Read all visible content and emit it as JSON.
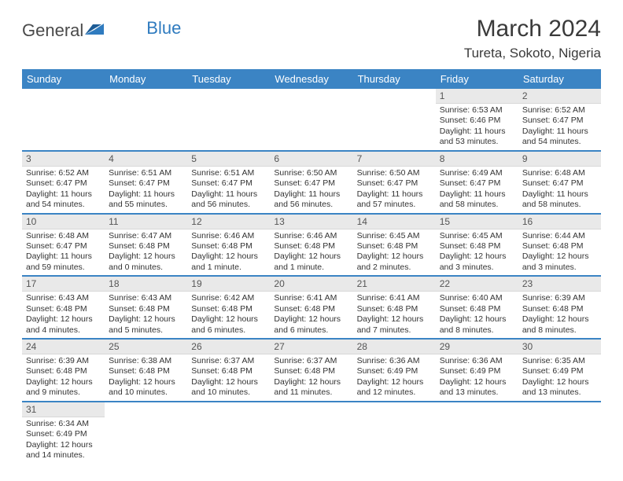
{
  "logo": {
    "general": "General",
    "blue": "Blue"
  },
  "header": {
    "title": "March 2024",
    "location": "Tureta, Sokoto, Nigeria",
    "title_fontsize": 30,
    "title_color": "#3a3a3a",
    "location_fontsize": 17
  },
  "colors": {
    "header_bg": "#3b84c4",
    "header_text": "#ffffff",
    "daynum_bg": "#e9e9e9",
    "daynum_color": "#555555",
    "row_border": "#3b84c4",
    "body_text": "#333333",
    "logo_blue": "#2f7bbf",
    "logo_gray": "#4a4a4a",
    "background": "#ffffff"
  },
  "weekdays": [
    "Sunday",
    "Monday",
    "Tuesday",
    "Wednesday",
    "Thursday",
    "Friday",
    "Saturday"
  ],
  "weeks": [
    [
      null,
      null,
      null,
      null,
      null,
      {
        "day": "1",
        "sunrise": "Sunrise: 6:53 AM",
        "sunset": "Sunset: 6:46 PM",
        "daylight": "Daylight: 11 hours and 53 minutes."
      },
      {
        "day": "2",
        "sunrise": "Sunrise: 6:52 AM",
        "sunset": "Sunset: 6:47 PM",
        "daylight": "Daylight: 11 hours and 54 minutes."
      }
    ],
    [
      {
        "day": "3",
        "sunrise": "Sunrise: 6:52 AM",
        "sunset": "Sunset: 6:47 PM",
        "daylight": "Daylight: 11 hours and 54 minutes."
      },
      {
        "day": "4",
        "sunrise": "Sunrise: 6:51 AM",
        "sunset": "Sunset: 6:47 PM",
        "daylight": "Daylight: 11 hours and 55 minutes."
      },
      {
        "day": "5",
        "sunrise": "Sunrise: 6:51 AM",
        "sunset": "Sunset: 6:47 PM",
        "daylight": "Daylight: 11 hours and 56 minutes."
      },
      {
        "day": "6",
        "sunrise": "Sunrise: 6:50 AM",
        "sunset": "Sunset: 6:47 PM",
        "daylight": "Daylight: 11 hours and 56 minutes."
      },
      {
        "day": "7",
        "sunrise": "Sunrise: 6:50 AM",
        "sunset": "Sunset: 6:47 PM",
        "daylight": "Daylight: 11 hours and 57 minutes."
      },
      {
        "day": "8",
        "sunrise": "Sunrise: 6:49 AM",
        "sunset": "Sunset: 6:47 PM",
        "daylight": "Daylight: 11 hours and 58 minutes."
      },
      {
        "day": "9",
        "sunrise": "Sunrise: 6:48 AM",
        "sunset": "Sunset: 6:47 PM",
        "daylight": "Daylight: 11 hours and 58 minutes."
      }
    ],
    [
      {
        "day": "10",
        "sunrise": "Sunrise: 6:48 AM",
        "sunset": "Sunset: 6:47 PM",
        "daylight": "Daylight: 11 hours and 59 minutes."
      },
      {
        "day": "11",
        "sunrise": "Sunrise: 6:47 AM",
        "sunset": "Sunset: 6:48 PM",
        "daylight": "Daylight: 12 hours and 0 minutes."
      },
      {
        "day": "12",
        "sunrise": "Sunrise: 6:46 AM",
        "sunset": "Sunset: 6:48 PM",
        "daylight": "Daylight: 12 hours and 1 minute."
      },
      {
        "day": "13",
        "sunrise": "Sunrise: 6:46 AM",
        "sunset": "Sunset: 6:48 PM",
        "daylight": "Daylight: 12 hours and 1 minute."
      },
      {
        "day": "14",
        "sunrise": "Sunrise: 6:45 AM",
        "sunset": "Sunset: 6:48 PM",
        "daylight": "Daylight: 12 hours and 2 minutes."
      },
      {
        "day": "15",
        "sunrise": "Sunrise: 6:45 AM",
        "sunset": "Sunset: 6:48 PM",
        "daylight": "Daylight: 12 hours and 3 minutes."
      },
      {
        "day": "16",
        "sunrise": "Sunrise: 6:44 AM",
        "sunset": "Sunset: 6:48 PM",
        "daylight": "Daylight: 12 hours and 3 minutes."
      }
    ],
    [
      {
        "day": "17",
        "sunrise": "Sunrise: 6:43 AM",
        "sunset": "Sunset: 6:48 PM",
        "daylight": "Daylight: 12 hours and 4 minutes."
      },
      {
        "day": "18",
        "sunrise": "Sunrise: 6:43 AM",
        "sunset": "Sunset: 6:48 PM",
        "daylight": "Daylight: 12 hours and 5 minutes."
      },
      {
        "day": "19",
        "sunrise": "Sunrise: 6:42 AM",
        "sunset": "Sunset: 6:48 PM",
        "daylight": "Daylight: 12 hours and 6 minutes."
      },
      {
        "day": "20",
        "sunrise": "Sunrise: 6:41 AM",
        "sunset": "Sunset: 6:48 PM",
        "daylight": "Daylight: 12 hours and 6 minutes."
      },
      {
        "day": "21",
        "sunrise": "Sunrise: 6:41 AM",
        "sunset": "Sunset: 6:48 PM",
        "daylight": "Daylight: 12 hours and 7 minutes."
      },
      {
        "day": "22",
        "sunrise": "Sunrise: 6:40 AM",
        "sunset": "Sunset: 6:48 PM",
        "daylight": "Daylight: 12 hours and 8 minutes."
      },
      {
        "day": "23",
        "sunrise": "Sunrise: 6:39 AM",
        "sunset": "Sunset: 6:48 PM",
        "daylight": "Daylight: 12 hours and 8 minutes."
      }
    ],
    [
      {
        "day": "24",
        "sunrise": "Sunrise: 6:39 AM",
        "sunset": "Sunset: 6:48 PM",
        "daylight": "Daylight: 12 hours and 9 minutes."
      },
      {
        "day": "25",
        "sunrise": "Sunrise: 6:38 AM",
        "sunset": "Sunset: 6:48 PM",
        "daylight": "Daylight: 12 hours and 10 minutes."
      },
      {
        "day": "26",
        "sunrise": "Sunrise: 6:37 AM",
        "sunset": "Sunset: 6:48 PM",
        "daylight": "Daylight: 12 hours and 10 minutes."
      },
      {
        "day": "27",
        "sunrise": "Sunrise: 6:37 AM",
        "sunset": "Sunset: 6:48 PM",
        "daylight": "Daylight: 12 hours and 11 minutes."
      },
      {
        "day": "28",
        "sunrise": "Sunrise: 6:36 AM",
        "sunset": "Sunset: 6:49 PM",
        "daylight": "Daylight: 12 hours and 12 minutes."
      },
      {
        "day": "29",
        "sunrise": "Sunrise: 6:36 AM",
        "sunset": "Sunset: 6:49 PM",
        "daylight": "Daylight: 12 hours and 13 minutes."
      },
      {
        "day": "30",
        "sunrise": "Sunrise: 6:35 AM",
        "sunset": "Sunset: 6:49 PM",
        "daylight": "Daylight: 12 hours and 13 minutes."
      }
    ],
    [
      {
        "day": "31",
        "sunrise": "Sunrise: 6:34 AM",
        "sunset": "Sunset: 6:49 PM",
        "daylight": "Daylight: 12 hours and 14 minutes."
      },
      null,
      null,
      null,
      null,
      null,
      null
    ]
  ]
}
